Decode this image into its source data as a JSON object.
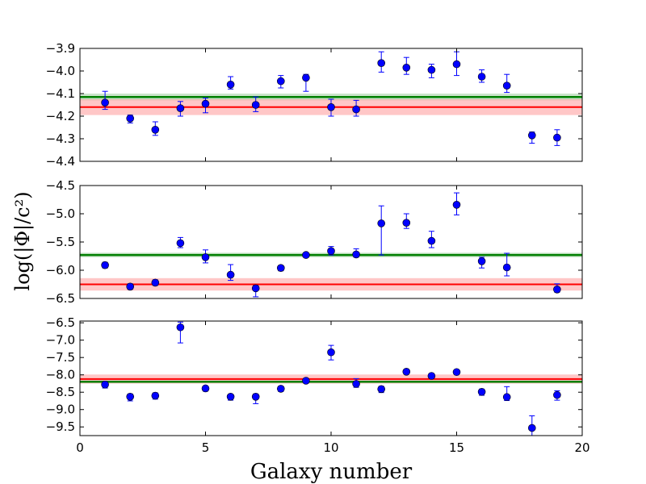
{
  "chart_data": {
    "type": "scatter",
    "xlabel": "Galaxy number",
    "ylabel": "log(|Φ|/c²)",
    "xlim": [
      0,
      20
    ],
    "xticks": [
      0,
      5,
      10,
      15,
      20
    ],
    "colors": {
      "points": "#0000ff",
      "errorbars": "#0000ff",
      "green_line": "#007f00",
      "green_band": "#66b266",
      "red_line": "#ff0000",
      "red_band": "#ff9999"
    },
    "panels": [
      {
        "name": "top",
        "ylim": [
          -4.4,
          -3.9
        ],
        "yticks": [
          -4.4,
          -4.3,
          -4.2,
          -4.1,
          -4.0,
          -3.9
        ],
        "ytick_labels": [
          "−4.4",
          "−4.3",
          "−4.2",
          "−4.1",
          "−4.0",
          "−3.9"
        ],
        "x": [
          1,
          2,
          3,
          4,
          5,
          6,
          7,
          8,
          9,
          10,
          11,
          12,
          13,
          14,
          15,
          16,
          17,
          18,
          19
        ],
        "y": [
          -4.14,
          -4.21,
          -4.26,
          -4.165,
          -4.145,
          -4.06,
          -4.15,
          -4.045,
          -4.03,
          -4.16,
          -4.17,
          -3.965,
          -3.985,
          -3.995,
          -3.97,
          -4.025,
          -4.065,
          -4.285,
          -4.295
        ],
        "err_low": [
          0.03,
          0.02,
          0.025,
          0.035,
          0.04,
          0.02,
          0.03,
          0.03,
          0.06,
          0.04,
          0.03,
          0.04,
          0.03,
          0.035,
          0.05,
          0.025,
          0.03,
          0.035,
          0.035
        ],
        "err_high": [
          0.05,
          0.015,
          0.035,
          0.03,
          0.025,
          0.035,
          0.035,
          0.025,
          0.015,
          0.035,
          0.04,
          0.05,
          0.045,
          0.025,
          0.055,
          0.03,
          0.05,
          0.015,
          0.035
        ],
        "green_line": -4.115,
        "green_band": [
          -4.13,
          -4.1
        ],
        "red_line": -4.16,
        "red_band": [
          -4.195,
          -4.125
        ]
      },
      {
        "name": "middle",
        "ylim": [
          -6.5,
          -4.5
        ],
        "yticks": [
          -6.5,
          -6.0,
          -5.5,
          -5.0,
          -4.5
        ],
        "ytick_labels": [
          "−6.5",
          "−6.0",
          "−5.5",
          "−5.0",
          "−4.5"
        ],
        "x": [
          1,
          2,
          3,
          4,
          5,
          6,
          7,
          8,
          9,
          10,
          11,
          12,
          13,
          14,
          15,
          16,
          17,
          19
        ],
        "y": [
          -5.91,
          -6.29,
          -6.22,
          -5.52,
          -5.77,
          -6.08,
          -6.32,
          -5.96,
          -5.73,
          -5.66,
          -5.72,
          -5.17,
          -5.16,
          -5.48,
          -4.84,
          -5.84,
          -5.95,
          -6.34
        ],
        "err_low": [
          0.05,
          0.05,
          0.05,
          0.08,
          0.1,
          0.1,
          0.15,
          0.05,
          0.03,
          0.07,
          0.05,
          0.56,
          0.1,
          0.12,
          0.18,
          0.12,
          0.15,
          0.05
        ],
        "err_high": [
          0.05,
          0.05,
          0.05,
          0.1,
          0.13,
          0.18,
          0.05,
          0.04,
          0.03,
          0.08,
          0.1,
          0.31,
          0.16,
          0.17,
          0.21,
          0.07,
          0.25,
          0.1
        ],
        "green_line": -5.73,
        "green_band": [
          -5.77,
          -5.69
        ],
        "red_line": -6.25,
        "red_band": [
          -6.36,
          -6.14
        ]
      },
      {
        "name": "bottom",
        "ylim": [
          -9.75,
          -6.45
        ],
        "yticks": [
          -9.5,
          -9.0,
          -8.5,
          -8.0,
          -7.5,
          -7.0,
          -6.5
        ],
        "ytick_labels": [
          "−9.5",
          "−9.0",
          "−8.5",
          "−8.0",
          "−7.5",
          "−7.0",
          "−6.5"
        ],
        "x": [
          1,
          2,
          3,
          4,
          5,
          6,
          7,
          8,
          9,
          10,
          11,
          12,
          13,
          14,
          15,
          16,
          17,
          18,
          19
        ],
        "y": [
          -8.28,
          -8.63,
          -8.6,
          -6.63,
          -8.39,
          -8.63,
          -8.63,
          -8.4,
          -8.17,
          -7.35,
          -8.26,
          -8.41,
          -7.91,
          -8.03,
          -7.92,
          -8.49,
          -8.64,
          -9.53,
          -8.58
        ],
        "err_low": [
          0.1,
          0.12,
          0.1,
          0.45,
          0.08,
          0.1,
          0.2,
          0.08,
          0.05,
          0.22,
          0.1,
          0.1,
          0.06,
          0.06,
          0.05,
          0.1,
          0.1,
          0.22,
          0.15
        ],
        "err_high": [
          0.08,
          0.08,
          0.08,
          0.15,
          0.06,
          0.06,
          0.08,
          0.06,
          0.05,
          0.2,
          0.15,
          0.08,
          0.06,
          0.06,
          0.05,
          0.08,
          0.3,
          0.35,
          0.12
        ],
        "green_line": -8.2,
        "green_band": [
          -8.23,
          -8.17
        ],
        "red_line": -8.12,
        "red_band": [
          -8.25,
          -7.99
        ]
      }
    ]
  }
}
